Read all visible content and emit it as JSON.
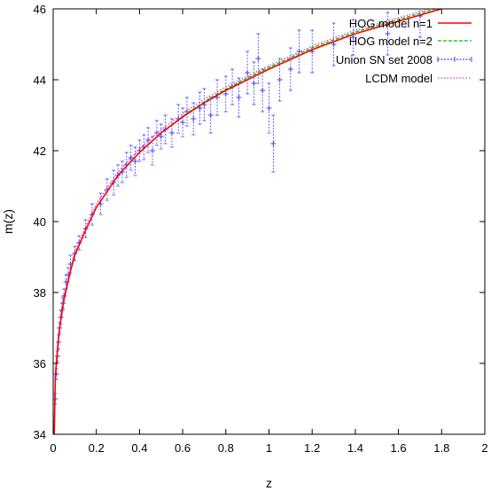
{
  "chart_data": {
    "type": "scatter",
    "title": "",
    "xlabel": "z",
    "ylabel": "m(z)",
    "xlim": [
      0,
      2
    ],
    "ylim": [
      34,
      46
    ],
    "x_ticks": [
      "0",
      "0.2",
      "0.4",
      "0.6",
      "0.8",
      "1",
      "1.2",
      "1.4",
      "1.6",
      "1.8",
      "2"
    ],
    "y_ticks": [
      "34",
      "36",
      "38",
      "40",
      "42",
      "44",
      "46"
    ],
    "grid": false,
    "legend_position": "top-right",
    "series": [
      {
        "name": "HOG model n=1",
        "kind": "line",
        "color": "#ff0000",
        "x": [
          0.005,
          0.01,
          0.02,
          0.03,
          0.05,
          0.08,
          0.1,
          0.15,
          0.2,
          0.3,
          0.4,
          0.5,
          0.6,
          0.7,
          0.8,
          0.9,
          1.0,
          1.2,
          1.4,
          1.6,
          1.8
        ],
        "y": [
          34.0,
          35.6,
          36.4,
          37.0,
          37.8,
          38.6,
          39.05,
          39.75,
          40.4,
          41.3,
          41.95,
          42.5,
          42.95,
          43.35,
          43.7,
          44.0,
          44.3,
          44.85,
          45.3,
          45.65,
          46.0
        ]
      },
      {
        "name": "HOG model n=2",
        "kind": "dashed-line",
        "color": "#00c000",
        "x": [
          0.005,
          0.01,
          0.02,
          0.03,
          0.05,
          0.08,
          0.1,
          0.15,
          0.2,
          0.3,
          0.4,
          0.5,
          0.6,
          0.7,
          0.8,
          0.9,
          1.0,
          1.2,
          1.4,
          1.6,
          1.8
        ],
        "y": [
          34.0,
          35.6,
          36.4,
          37.0,
          37.8,
          38.6,
          39.05,
          39.75,
          40.4,
          41.3,
          41.95,
          42.5,
          42.97,
          43.38,
          43.74,
          44.05,
          44.35,
          44.9,
          45.35,
          45.7,
          46.05
        ]
      },
      {
        "name": "Union SN set 2008",
        "kind": "errorbar",
        "color": "#4040ff",
        "x": [
          0.01,
          0.015,
          0.02,
          0.025,
          0.03,
          0.035,
          0.04,
          0.045,
          0.05,
          0.06,
          0.07,
          0.08,
          0.1,
          0.12,
          0.15,
          0.18,
          0.22,
          0.25,
          0.28,
          0.3,
          0.32,
          0.34,
          0.36,
          0.38,
          0.4,
          0.42,
          0.44,
          0.46,
          0.48,
          0.5,
          0.52,
          0.55,
          0.58,
          0.6,
          0.62,
          0.65,
          0.68,
          0.7,
          0.73,
          0.76,
          0.8,
          0.83,
          0.86,
          0.9,
          0.93,
          0.95,
          0.97,
          1.0,
          1.02,
          1.05,
          1.1,
          1.14,
          1.2,
          1.3,
          1.39,
          1.55,
          1.7
        ],
        "y": [
          35.0,
          35.7,
          36.2,
          36.6,
          37.0,
          37.3,
          37.5,
          37.7,
          37.9,
          38.3,
          38.5,
          38.8,
          39.1,
          39.4,
          39.8,
          40.2,
          40.5,
          40.9,
          41.1,
          41.3,
          41.4,
          41.6,
          41.8,
          41.7,
          42.0,
          42.1,
          42.3,
          42.0,
          42.5,
          42.4,
          42.6,
          42.5,
          42.9,
          42.8,
          43.1,
          42.9,
          43.2,
          43.3,
          43.0,
          43.5,
          43.6,
          43.8,
          43.5,
          44.2,
          43.9,
          44.6,
          43.7,
          43.2,
          42.2,
          44.0,
          44.3,
          44.8,
          44.8,
          45.0,
          45.2,
          45.3,
          45.8
        ],
        "err": [
          0.15,
          0.15,
          0.15,
          0.2,
          0.15,
          0.2,
          0.2,
          0.15,
          0.2,
          0.2,
          0.2,
          0.25,
          0.2,
          0.2,
          0.25,
          0.3,
          0.3,
          0.3,
          0.35,
          0.3,
          0.3,
          0.35,
          0.35,
          0.4,
          0.3,
          0.35,
          0.35,
          0.4,
          0.35,
          0.35,
          0.4,
          0.4,
          0.4,
          0.4,
          0.4,
          0.45,
          0.45,
          0.45,
          0.5,
          0.5,
          0.5,
          0.5,
          0.55,
          0.6,
          0.6,
          0.7,
          0.6,
          0.7,
          0.8,
          0.6,
          0.6,
          0.6,
          0.6,
          0.6,
          0.5,
          0.6,
          0.6
        ]
      },
      {
        "name": "LCDM model",
        "kind": "dotted-line",
        "color": "#cc44cc",
        "x": [
          0.005,
          0.01,
          0.02,
          0.03,
          0.05,
          0.08,
          0.1,
          0.15,
          0.2,
          0.3,
          0.4,
          0.5,
          0.6,
          0.7,
          0.8,
          0.9,
          1.0,
          1.2,
          1.4,
          1.6,
          1.8
        ],
        "y": [
          34.1,
          35.7,
          36.5,
          37.1,
          37.9,
          38.7,
          39.15,
          39.85,
          40.5,
          41.4,
          42.05,
          42.6,
          43.05,
          43.45,
          43.8,
          44.1,
          44.4,
          44.95,
          45.4,
          45.75,
          46.1
        ]
      }
    ]
  }
}
